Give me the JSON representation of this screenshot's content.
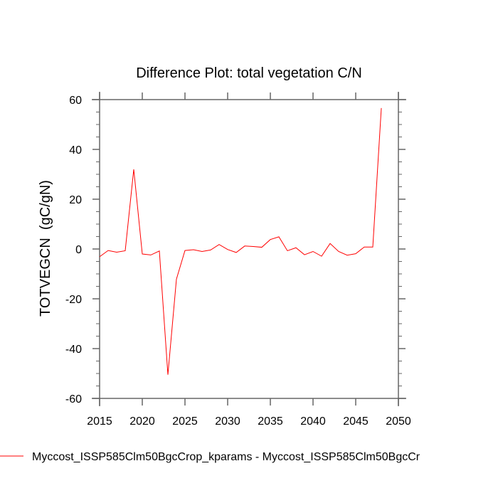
{
  "chart_data": {
    "type": "line",
    "title": "Difference Plot: total vegetation C/N",
    "xlabel": "",
    "ylabel": "TOTVEGCN  (gC/gN)",
    "xlim": [
      2015,
      2050
    ],
    "ylim": [
      -60,
      60
    ],
    "xticks": [
      2015,
      2020,
      2025,
      2030,
      2035,
      2040,
      2045,
      2050
    ],
    "xtick_labels": [
      "2015",
      "2020",
      "2025",
      "2030",
      "2035",
      "2040",
      "2045",
      "2050"
    ],
    "yticks": [
      60,
      40,
      20,
      0,
      -20,
      -40,
      -60
    ],
    "ytick_labels": [
      "60",
      "40",
      "20",
      "0",
      "-20",
      "-40",
      "-60"
    ],
    "grid": false,
    "legend_placement": "bottom",
    "series": [
      {
        "name": "Myccost_ISSP585Clm50BgcCrop_kparams - Myccost_ISSP585Clm50BgcCr",
        "color": "#ff0000",
        "x": [
          2015,
          2016,
          2017,
          2018,
          2019,
          2020,
          2021,
          2022,
          2023,
          2024,
          2025,
          2026,
          2027,
          2028,
          2029,
          2030,
          2031,
          2032,
          2033,
          2034,
          2035,
          2036,
          2037,
          2038,
          2039,
          2040,
          2041,
          2042,
          2043,
          2044,
          2045,
          2046,
          2047,
          2048
        ],
        "values": [
          -3.1,
          -0.6,
          -1.3,
          -0.7,
          32.0,
          -2.0,
          -2.4,
          -0.8,
          -50.5,
          -12.1,
          -0.6,
          -0.3,
          -1.0,
          -0.4,
          1.8,
          -0.2,
          -1.4,
          1.2,
          1.0,
          0.7,
          3.8,
          4.9,
          -0.7,
          0.5,
          -2.3,
          -1.0,
          -2.9,
          2.2,
          -1.0,
          -2.5,
          -1.9,
          0.8,
          0.8,
          56.6
        ]
      }
    ]
  }
}
